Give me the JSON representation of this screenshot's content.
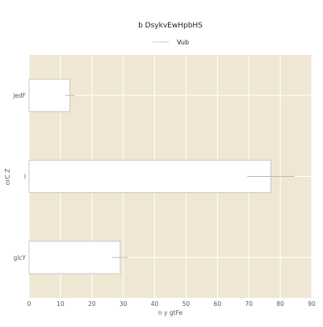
{
  "chart_data": {
    "type": "bar",
    "orientation": "horizontal",
    "title": "b DsykvEwHpbHS",
    "xlabel": "n  y gtFe",
    "ylabel": "orC Z",
    "categories": [
      "jedF",
      "l",
      "glcY"
    ],
    "series": [
      {
        "name": "Vub",
        "values": [
          13,
          77,
          29
        ],
        "error": [
          1.5,
          7.5,
          2.5
        ],
        "color": "#ffffff",
        "edge_color": "#c8c8c8"
      }
    ],
    "xlim": [
      0,
      90
    ],
    "xticks": [
      0,
      10,
      20,
      30,
      40,
      50,
      60,
      70,
      80,
      90
    ],
    "grid": true,
    "legend_position": "top-center",
    "plot_background": "#efe7d3",
    "error_bar_color": "#b8b8b8"
  }
}
